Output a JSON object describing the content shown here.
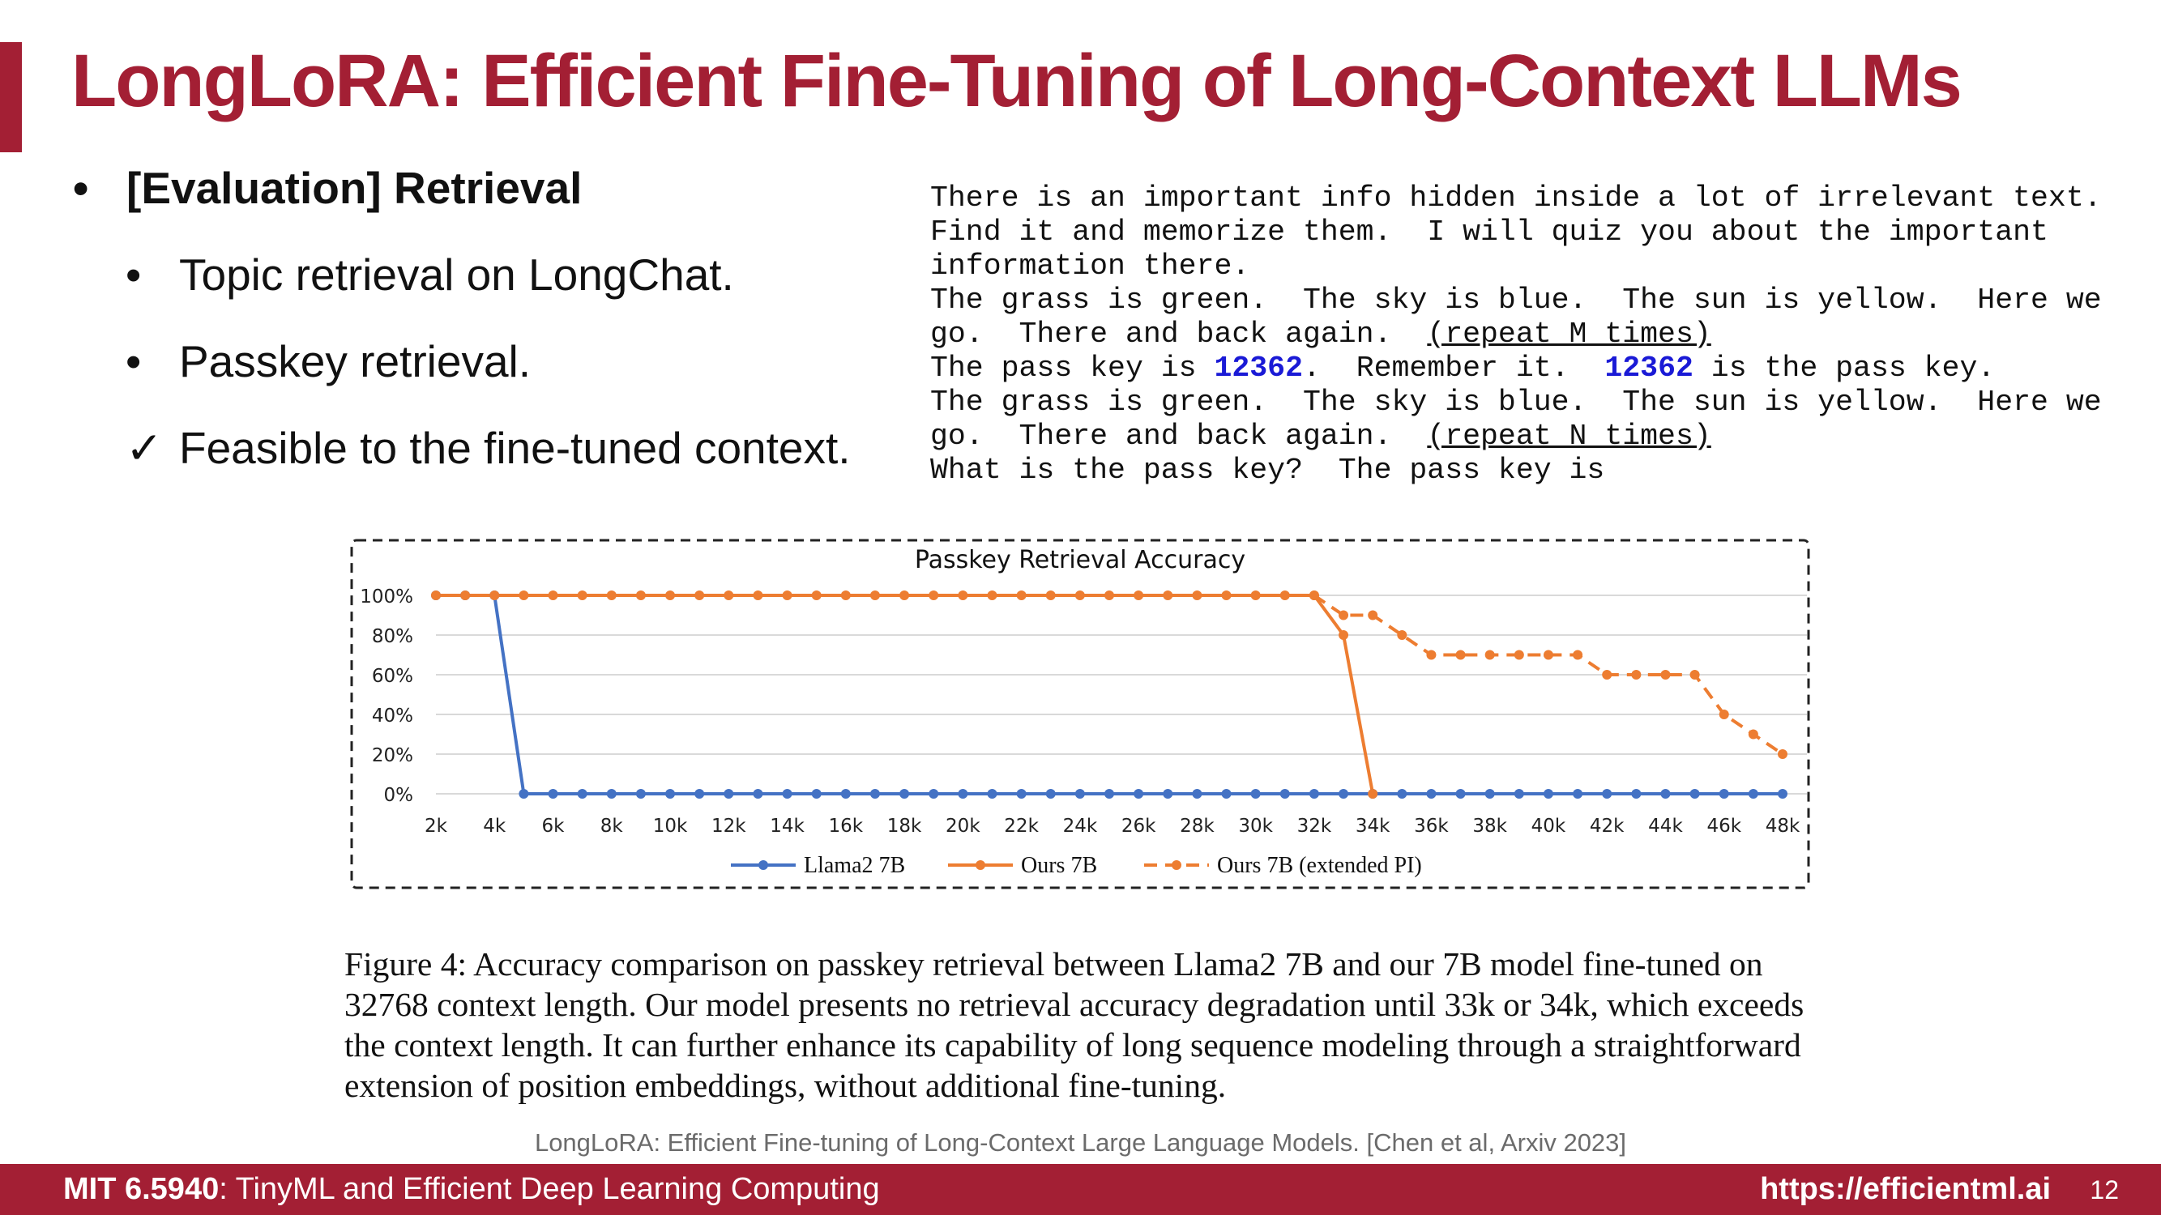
{
  "slide": {
    "title": "LongLoRA: Efficient Fine-Tuning of Long-Context LLMs",
    "bullet_main": "[Evaluation] Retrieval",
    "bullet_marker": "•",
    "check_marker": "✓",
    "sub_bullets": [
      "Topic retrieval on LongChat.",
      "Passkey retrieval.",
      "Feasible to the fine-tuned context."
    ],
    "accent_color": "#a31f34"
  },
  "prompt": {
    "line1": "There is an important info hidden inside a lot of irrelevant text.",
    "line2": "Find it and memorize them.  I will quiz you about the important",
    "line3": "information there.",
    "line4": "The grass is green.  The sky is blue.  The sun is yellow.  Here we",
    "line5a": "go.  There and back again.  ",
    "line5b": "(repeat M times)",
    "line6a": "The pass key is ",
    "passkey": "12362",
    "line6b": ".  Remember it.  ",
    "line6c": " is the pass key.",
    "line7": "The grass is green.  The sky is blue.  The sun is yellow.  Here we",
    "line8a": "go.  There and back again.  ",
    "line8b": "(repeat N times)",
    "line9": "What is the pass key?  The pass key is",
    "passkey_color": "#1a1ad6"
  },
  "chart_data": {
    "type": "line",
    "title": "Passkey Retrieval Accuracy",
    "categories": [
      "2k",
      "3k",
      "4k",
      "5k",
      "6k",
      "7k",
      "8k",
      "9k",
      "10k",
      "11k",
      "12k",
      "13k",
      "14k",
      "15k",
      "16k",
      "17k",
      "18k",
      "19k",
      "20k",
      "21k",
      "22k",
      "23k",
      "24k",
      "25k",
      "26k",
      "27k",
      "28k",
      "29k",
      "30k",
      "31k",
      "32k",
      "33k",
      "34k",
      "35k",
      "36k",
      "37k",
      "38k",
      "39k",
      "40k",
      "41k",
      "42k",
      "43k",
      "44k",
      "45k",
      "46k",
      "47k",
      "48k"
    ],
    "tick_labels": [
      "2k",
      "4k",
      "6k",
      "8k",
      "10k",
      "12k",
      "14k",
      "16k",
      "18k",
      "20k",
      "22k",
      "24k",
      "26k",
      "28k",
      "30k",
      "32k",
      "34k",
      "36k",
      "38k",
      "40k",
      "42k",
      "44k",
      "46k",
      "48k"
    ],
    "y_ticks": [
      "0%",
      "20%",
      "40%",
      "60%",
      "80%",
      "100%"
    ],
    "ylim": [
      0,
      100
    ],
    "grid": true,
    "legend_position": "bottom",
    "series": [
      {
        "name": "Llama2 7B",
        "color": "#4472c4",
        "dashed": false,
        "values": [
          100,
          100,
          100,
          0,
          0,
          0,
          0,
          0,
          0,
          0,
          0,
          0,
          0,
          0,
          0,
          0,
          0,
          0,
          0,
          0,
          0,
          0,
          0,
          0,
          0,
          0,
          0,
          0,
          0,
          0,
          0,
          0,
          0,
          0,
          0,
          0,
          0,
          0,
          0,
          0,
          0,
          0,
          0,
          0,
          0,
          0,
          0
        ]
      },
      {
        "name": "Ours 7B",
        "color": "#ed7d31",
        "dashed": false,
        "values": [
          100,
          100,
          100,
          100,
          100,
          100,
          100,
          100,
          100,
          100,
          100,
          100,
          100,
          100,
          100,
          100,
          100,
          100,
          100,
          100,
          100,
          100,
          100,
          100,
          100,
          100,
          100,
          100,
          100,
          100,
          100,
          80,
          0,
          null,
          null,
          null,
          null,
          null,
          null,
          null,
          null,
          null,
          null,
          null,
          null,
          null,
          null
        ]
      },
      {
        "name": "Ours 7B (extended PI)",
        "color": "#ed7d31",
        "dashed": true,
        "values": [
          null,
          null,
          null,
          null,
          null,
          null,
          null,
          null,
          null,
          null,
          null,
          null,
          null,
          null,
          null,
          null,
          null,
          null,
          null,
          null,
          null,
          null,
          null,
          null,
          null,
          null,
          null,
          null,
          null,
          null,
          100,
          90,
          90,
          80,
          70,
          70,
          70,
          70,
          70,
          70,
          60,
          60,
          60,
          60,
          40,
          30,
          20
        ]
      }
    ]
  },
  "caption": "Figure 4: Accuracy comparison on passkey retrieval between Llama2 7B and our 7B model fine-tuned on 32768 context length. Our model presents no retrieval accuracy degradation until 33k or 34k, which exceeds the context length. It can further enhance its capability of long sequence modeling through a straightforward extension of position embeddings, without additional fine-tuning.",
  "citation": "LongLoRA: Efficient Fine-tuning of Long-Context Large Language Models. [Chen et al, Arxiv 2023]",
  "footer": {
    "course_code": "MIT 6.5940",
    "course_rest": ": TinyML and Efficient Deep Learning Computing",
    "url": "https://efficientml.ai",
    "page": "12"
  }
}
